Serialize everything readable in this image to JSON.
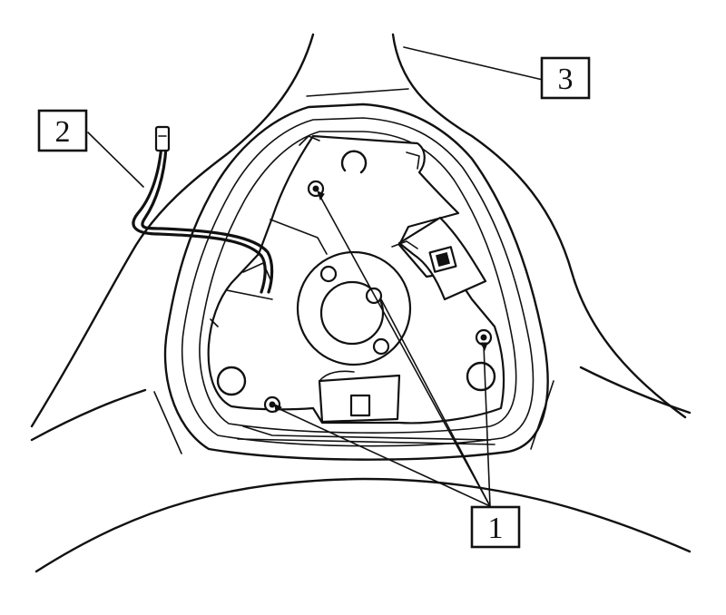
{
  "callouts": {
    "c1": "1",
    "c2": "2",
    "c3": "3"
  },
  "icons": {
    "steering-hub": "steering-wheel-hub-assembly",
    "wire": "wire-lead-with-connector"
  },
  "colors": {
    "line": "#111111",
    "background": "#ffffff"
  }
}
